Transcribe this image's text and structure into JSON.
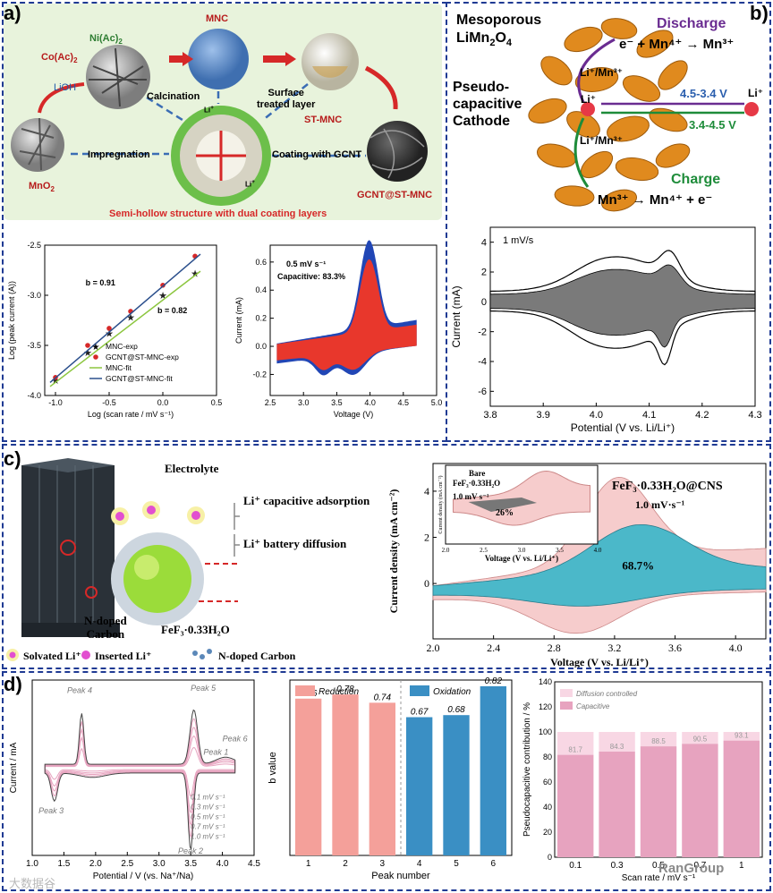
{
  "panel_labels": {
    "a": "a)",
    "b": "b)",
    "c": "c)",
    "d": "d)"
  },
  "panel_a_schematic": {
    "reagents": {
      "ni": "Ni(Ac)",
      "ni_sub": "2",
      "co": "Co(Ac)",
      "co_sub": "2",
      "lioh": "LiOH",
      "mno2": "MnO",
      "mno2_sub": "2"
    },
    "products": {
      "mnc": "MNC",
      "st_mnc": "ST-MNC",
      "gcnt": "GCNT@ST-MNC"
    },
    "steps": {
      "calcination": "Calcination",
      "surface1": "Surface",
      "surface2": "treated layer",
      "impregnation": "Impregnation",
      "coating": "Coating with GCNT"
    },
    "caption": "Semi-hollow structure with dual coating layers",
    "li": "Li",
    "li_sup": "+",
    "colors": {
      "bg": "#e8f3dc",
      "caption": "#d62828",
      "arrow": "#d62828",
      "blue_dash": "#3b6db4"
    }
  },
  "panel_b_schematic": {
    "title1": "Mesoporous",
    "title2": "LiMn",
    "title2_sub": "2",
    "title2_rest": "O",
    "title2_sub2": "4",
    "pseudo1": "Pseudo-",
    "pseudo2": "capacitive",
    "pseudo3": "Cathode",
    "discharge": "Discharge",
    "discharge_eq": "e⁻ + Mn⁴⁺ → Mn³⁺",
    "charge": "Charge",
    "charge_eq": "Mn³⁺ → Mn⁴⁺ + e⁻",
    "li_mn_top": "Li⁺/Mn³⁺",
    "li_mn_bottom": "Li⁺/Mn³⁺",
    "li_center": "Li⁺",
    "li_right": "Li⁺",
    "range_discharge": "4.5-3.4 V",
    "range_charge": "3.4-4.5 V",
    "colors": {
      "discharge": "#6a2c91",
      "charge": "#1e8c3a",
      "range_d": "#2b5fae",
      "range_c": "#1e8c3a",
      "particle": "#e08a1e"
    }
  },
  "panel_c_schematic": {
    "electrolyte": "Electrolyte",
    "capacitive": "Li⁺ capacitive adsorption",
    "battery": "Li⁺ battery diffusion",
    "ndoped1": "N-doped",
    "ndoped2": "Carbon",
    "fef3": "FeF₃·0.33H₂O",
    "legend_solvated": "Solvated Li⁺",
    "legend_inserted": "Inserted Li⁺",
    "legend_ndoped": "N-doped Carbon"
  },
  "chart_data": [
    {
      "id": "a-left",
      "type": "scatter",
      "xlabel": "Log (scan rate / mV s⁻¹)",
      "ylabel": "Log (peak current (A))",
      "xlim": [
        -1.1,
        0.5
      ],
      "ylim": [
        -4.0,
        -2.5
      ],
      "xticks": [
        "-1.0",
        "-0.5",
        "0.0",
        "0.5"
      ],
      "yticks": [
        "-4.0",
        "-3.5",
        "-3.0",
        "-2.5"
      ],
      "series": [
        {
          "name": "MNC-exp",
          "marker": "star",
          "color": "#222222",
          "x": [
            -1.0,
            -0.7,
            -0.5,
            -0.3,
            0.0,
            0.3
          ],
          "y": [
            -3.85,
            -3.57,
            -3.38,
            -3.22,
            -3.0,
            -2.78
          ]
        },
        {
          "name": "GCNT@ST-MNC-exp",
          "marker": "circle",
          "color": "#d62828",
          "x": [
            -1.0,
            -0.7,
            -0.5,
            -0.3,
            0.0,
            0.3
          ],
          "y": [
            -3.82,
            -3.5,
            -3.33,
            -3.16,
            -2.9,
            -2.61
          ]
        },
        {
          "name": "MNC-fit",
          "line": true,
          "color": "#8cc63f",
          "x": [
            -1.05,
            0.35
          ],
          "y": [
            -3.91,
            -2.76
          ]
        },
        {
          "name": "GCNT@ST-MNC-fit",
          "line": true,
          "color": "#2b4f8c",
          "x": [
            -1.05,
            0.35
          ],
          "y": [
            -3.87,
            -2.59
          ]
        }
      ],
      "annotations": [
        "b = 0.91",
        "b = 0.82"
      ]
    },
    {
      "id": "a-right",
      "type": "area",
      "xlabel": "Voltage (V)",
      "ylabel": "Current (mA)",
      "xlim": [
        2.5,
        5.0
      ],
      "ylim": [
        -0.35,
        0.72
      ],
      "xticks": [
        "2.5",
        "3.0",
        "3.5",
        "4.0",
        "4.5",
        "5.0"
      ],
      "yticks": [
        "-0.2",
        "0.0",
        "0.2",
        "0.4",
        "0.6"
      ],
      "title": "0.5 mV s⁻¹",
      "subtitle": "Capacitive: 83.3%",
      "series": [
        {
          "name": "total",
          "color": "#2146b5"
        },
        {
          "name": "capacitive",
          "color": "#e8372c"
        }
      ]
    },
    {
      "id": "b",
      "type": "area",
      "xlabel": "Potential (V vs. Li/Li⁺)",
      "ylabel": "Current (mA)",
      "xlim": [
        3.8,
        4.3
      ],
      "ylim": [
        -7,
        5
      ],
      "xticks": [
        "3.8",
        "3.9",
        "4.0",
        "4.1",
        "4.2",
        "4.3"
      ],
      "yticks": [
        "-6",
        "-4",
        "-2",
        "0",
        "2",
        "4"
      ],
      "title": "1 mV/s",
      "series": [
        {
          "name": "total",
          "color": "#ffffff"
        },
        {
          "name": "capacitive",
          "color": "#7a7a7a"
        }
      ]
    },
    {
      "id": "c",
      "type": "area",
      "xlabel": "Voltage (V vs. Li/Li⁺)",
      "ylabel": "Current density (mA cm⁻²)",
      "xlim": [
        2.0,
        4.2
      ],
      "ylim": [
        -2.4,
        5.2
      ],
      "xticks": [
        "2.0",
        "2.4",
        "2.8",
        "3.2",
        "3.6",
        "4.0"
      ],
      "yticks": [
        "0",
        "2",
        "4"
      ],
      "title": "FeF₃·0.33H₂O@CNS",
      "subtitle": "1.0 mV·s⁻¹",
      "capacitive_pct": "68.7%",
      "inset": {
        "title1": "Bare",
        "title2": "FeF₃·0.33H₂O",
        "rate": "1.0 mV s⁻¹",
        "pct": "26%",
        "xlabel": "Voltage (V vs. Li/Li⁺)",
        "ylabel": "Current density (mA cm⁻²)",
        "xticks": [
          "2.0",
          "2.5",
          "3.0",
          "3.5",
          "4.0"
        ]
      },
      "series": [
        {
          "name": "total",
          "color": "#f6cccc"
        },
        {
          "name": "capacitive",
          "color": "#4bb8c9"
        }
      ]
    },
    {
      "id": "d-left",
      "type": "line",
      "xlabel": "Potential / V (vs. Na⁺/Na)",
      "ylabel": "Current / mA",
      "xlim": [
        1.0,
        4.5
      ],
      "ylim": [
        -1.0,
        1.0
      ],
      "xticks": [
        "1.0",
        "1.5",
        "2.0",
        "2.5",
        "3.0",
        "3.5",
        "4.0",
        "4.5"
      ],
      "yticks": [],
      "peaks": [
        "Peak 1",
        "Peak 2",
        "Peak 3",
        "Peak 4",
        "Peak 5",
        "Peak 6"
      ],
      "legend": [
        "0.1 mV s⁻¹",
        "0.3 mV s⁻¹",
        "0.5 mV s⁻¹",
        "0.7 mV s⁻¹",
        "1.0 mV s⁻¹"
      ]
    },
    {
      "id": "d-mid",
      "type": "bar",
      "xlabel": "Peak number",
      "ylabel": "b value",
      "ylim": [
        0,
        0.85
      ],
      "categories": [
        "1",
        "2",
        "3",
        "4",
        "5",
        "6"
      ],
      "values": [
        0.76,
        0.78,
        0.74,
        0.67,
        0.68,
        0.82
      ],
      "value_labels": [
        "0.76",
        "0.78",
        "0.74",
        "0.67",
        "0.68",
        "0.82"
      ],
      "legend": [
        "Reduction",
        "Oxidation"
      ],
      "colors": [
        "#f4a09a",
        "#f4a09a",
        "#f4a09a",
        "#3a8fc4",
        "#3a8fc4",
        "#3a8fc4"
      ]
    },
    {
      "id": "d-right",
      "type": "bar",
      "xlabel": "Scan rate / mV s⁻¹",
      "ylabel": "Pseudocapacitive contribution / %",
      "ylim": [
        0,
        140
      ],
      "yticks": [
        "0",
        "20",
        "40",
        "60",
        "80",
        "100",
        "120",
        "140"
      ],
      "categories": [
        "0.1",
        "0.3",
        "0.5",
        "0.7",
        "1"
      ],
      "values": [
        81.7,
        84.3,
        88.5,
        90.5,
        93.1
      ],
      "value_labels": [
        "81.7",
        "84.3",
        "88.5",
        "90.5",
        "93.1"
      ],
      "legend": [
        "Diffusion controlled",
        "Capacitive"
      ],
      "colors": {
        "capacitive": "#e7a3bf",
        "diffusion": "#f8d7e4"
      }
    }
  ],
  "chart_text": {
    "a_left_legend": [
      "MNC-exp",
      "GCNT@ST-MNC-exp",
      "MNC-fit",
      "GCNT@ST-MNC-fit"
    ]
  },
  "watermark_left": "大数据谷",
  "watermark_right": "RanGroup"
}
